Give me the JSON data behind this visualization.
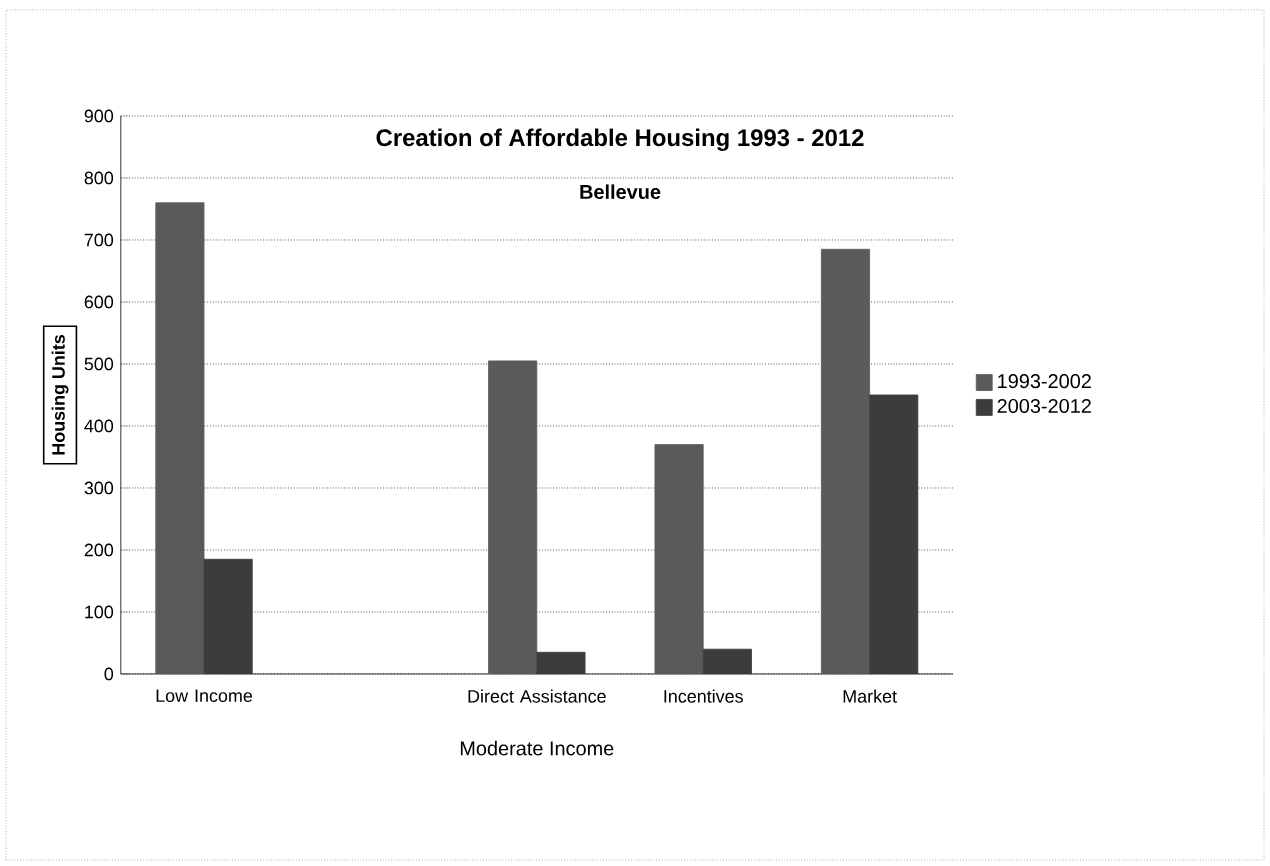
{
  "chart_data": {
    "type": "bar",
    "title": "Creation of Affordable Housing 1993 - 2012",
    "subtitle": "Bellevue",
    "xlabel": "Moderate Income",
    "ylabel": "Housing Units",
    "categories": [
      "Low Income",
      null,
      "Direct Assistance",
      "Incentives",
      "Market"
    ],
    "series": [
      {
        "name": "1993-2002",
        "color": "#5a5a5a",
        "values": [
          760,
          null,
          505,
          370,
          685
        ]
      },
      {
        "name": "2003-2012",
        "color": "#3c3c3c",
        "values": [
          185,
          null,
          35,
          40,
          450
        ]
      }
    ],
    "ylim": [
      0,
      900
    ],
    "yticks": [
      0,
      100,
      200,
      300,
      400,
      500,
      600,
      700,
      800,
      900
    ],
    "grid": "y",
    "legend": "right"
  }
}
